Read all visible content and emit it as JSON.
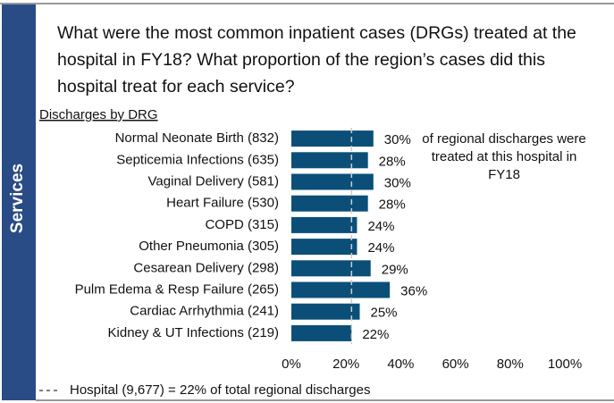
{
  "sidebar": "Services",
  "chart_data": {
    "type": "bar",
    "orientation": "horizontal",
    "title": "What were the most common inpatient cases (DRGs) treated at the hospital in FY18? What proportion of the region’s cases did this hospital treat for each service?",
    "subtitle": "Discharges by DRG",
    "categories": [
      "Normal Neonate Birth (832)",
      "Septicemia Infections (635)",
      "Vaginal Delivery (581)",
      "Heart Failure (530)",
      "COPD (315)",
      "Other Pneumonia (305)",
      "Cesarean Delivery (298)",
      "Pulm Edema & Resp Failure (265)",
      "Cardiac Arrhythmia  (241)",
      "Kidney & UT Infections (219)"
    ],
    "values": [
      30,
      28,
      30,
      28,
      24,
      24,
      29,
      36,
      25,
      22
    ],
    "value_labels": [
      "30%",
      "28%",
      "30%",
      "28%",
      "24%",
      "24%",
      "29%",
      "36%",
      "25%",
      "22%"
    ],
    "color": "#0b4f79",
    "xlim": [
      0,
      100
    ],
    "xticks": [
      {
        "value": 0,
        "label": "0%"
      },
      {
        "value": 20,
        "label": "20%"
      },
      {
        "value": 40,
        "label": "40%"
      },
      {
        "value": 60,
        "label": "60%"
      },
      {
        "value": 80,
        "label": "80%"
      },
      {
        "value": 100,
        "label": "100%"
      }
    ],
    "annotation": "of regional discharges were treated at this hospital in FY18",
    "reference_line": {
      "value": 22,
      "label": "Hospital (9,677) = 22%  of total regional discharges"
    }
  }
}
